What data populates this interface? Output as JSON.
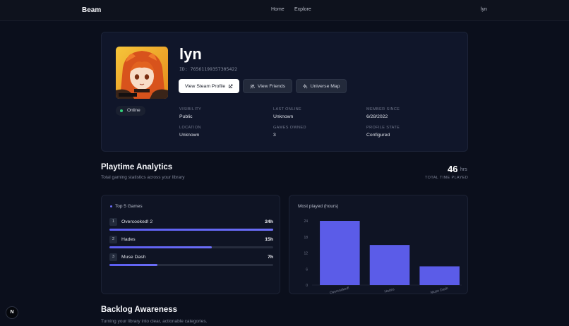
{
  "nav": {
    "brand": "Beam",
    "links": [
      {
        "label": "Home"
      },
      {
        "label": "Explore"
      }
    ],
    "user": "lyn"
  },
  "profile": {
    "name": "lyn",
    "id_text": "ID: 76561199357305422",
    "status": "Online",
    "buttons": {
      "steam_profile": "View Steam Profile",
      "friends": "View Friends",
      "universe_map": "Universe Map"
    },
    "meta": {
      "visibility": {
        "label": "VISIBILITY",
        "value": "Public"
      },
      "last_online": {
        "label": "LAST ONLINE",
        "value": "Unknown"
      },
      "member_since": {
        "label": "MEMBER SINCE",
        "value": "6/28/2022"
      },
      "location": {
        "label": "LOCATION",
        "value": "Unknown"
      },
      "games_owned": {
        "label": "GAMES OWNED",
        "value": "3"
      },
      "profile_state": {
        "label": "PROFILE STATE",
        "value": "Configured"
      }
    }
  },
  "analytics": {
    "title": "Playtime Analytics",
    "subtitle": "Total gaming statistics across your library",
    "total_value": "46",
    "total_unit": "hrs",
    "total_label": "TOTAL TIME PLAYED",
    "top_games_heading": "Top 5 Games",
    "top_games": [
      {
        "rank": "1",
        "name": "Overcooked! 2",
        "hours_label": "24h",
        "fraction": 1.0
      },
      {
        "rank": "2",
        "name": "Hades",
        "hours_label": "15h",
        "fraction": 0.625
      },
      {
        "rank": "3",
        "name": "Muse Dash",
        "hours_label": "7h",
        "fraction": 0.292
      }
    ],
    "chart_heading": "Most played (hours)"
  },
  "chart_data": {
    "type": "bar",
    "categories": [
      "Overcooked!",
      "Hades",
      "Muse Dash"
    ],
    "values": [
      24,
      15,
      7
    ],
    "ylim": [
      0,
      24
    ],
    "yticks": [
      0,
      6,
      12,
      18,
      24
    ],
    "color": "#5b5ce8"
  },
  "backlog": {
    "title": "Backlog Awareness",
    "subtitle": "Turning your library into clear, actionable categories."
  },
  "badge": {
    "letter": "N"
  }
}
